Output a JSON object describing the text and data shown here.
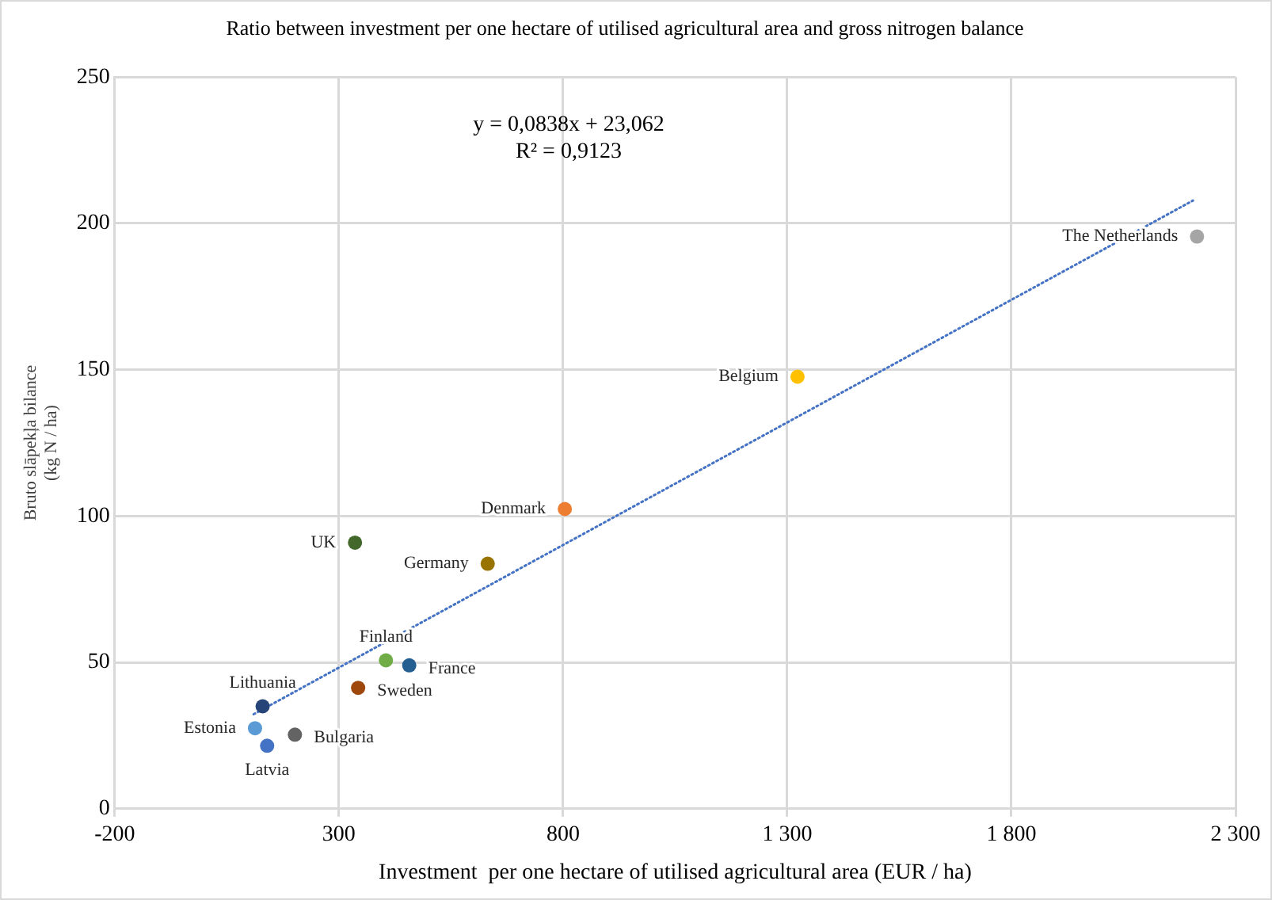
{
  "chart_data": {
    "type": "scatter",
    "title": "Ratio between investment per one hectare of utilised agricultural area and gross nitrogen balance",
    "xlabel": "Investment  per one hectare of utilised agricultural area (EUR / ha)",
    "ylabel": "Bruto slāpekļa bilance\n(kg N / ha)",
    "annotations": [
      "y = 0,0838x + 23,062",
      "R² = 0,9123"
    ],
    "xlim": [
      -200,
      2300
    ],
    "xticks": [
      -200,
      300,
      800,
      {
        "value": 1300,
        "label": "1 300"
      },
      {
        "value": 1800,
        "label": "1 800"
      },
      {
        "value": 2300,
        "label": "2 300"
      }
    ],
    "ylim": [
      0,
      250
    ],
    "yticks": [
      0,
      50,
      100,
      150,
      200,
      250
    ],
    "grid": true,
    "legend": false,
    "marker": "circle",
    "series": [
      {
        "name": "Lithuania",
        "color": "#264478",
        "x": [
          130
        ],
        "values": [
          35
        ]
      },
      {
        "name": "Estonia",
        "color": "#5b9bd5",
        "x": [
          113
        ],
        "values": [
          27.5
        ]
      },
      {
        "name": "Latvia",
        "color": "#4472c4",
        "x": [
          140
        ],
        "values": [
          21.5
        ]
      },
      {
        "name": "Bulgaria",
        "color": "#636363",
        "x": [
          202
        ],
        "values": [
          25.3
        ]
      },
      {
        "name": "UK",
        "color": "#43682b",
        "x": [
          336
        ],
        "values": [
          90.9
        ]
      },
      {
        "name": "Sweden",
        "color": "#9e480e",
        "x": [
          343
        ],
        "values": [
          41.3
        ]
      },
      {
        "name": "Finland",
        "color": "#70ad47",
        "x": [
          405
        ],
        "values": [
          50.7
        ]
      },
      {
        "name": "France",
        "color": "#255e91",
        "x": [
          457
        ],
        "values": [
          49
        ]
      },
      {
        "name": "Germany",
        "color": "#997300",
        "x": [
          632
        ],
        "values": [
          83.7
        ]
      },
      {
        "name": "Denmark",
        "color": "#ed7d31",
        "x": [
          804
        ],
        "values": [
          102.4
        ]
      },
      {
        "name": "Belgium",
        "color": "#ffc000",
        "x": [
          1323
        ],
        "values": [
          147.6
        ]
      },
      {
        "name": "The Netherlands",
        "color": "#a5a5a5",
        "x": [
          2214
        ],
        "values": [
          195.5
        ]
      },
      {
        "type": "line",
        "color": "#4472c4",
        "line_style": "dotted",
        "marker": "none",
        "x": [
          110,
          2205
        ],
        "values": [
          32.3,
          207.8
        ]
      }
    ]
  }
}
